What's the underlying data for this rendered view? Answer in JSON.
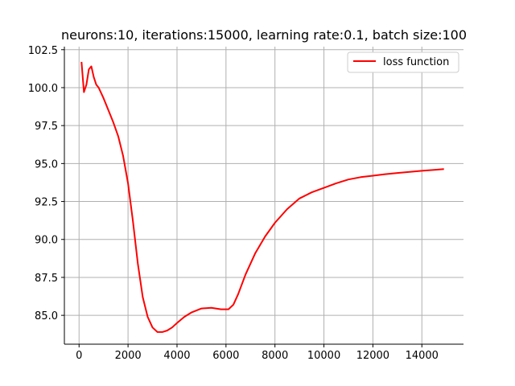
{
  "chart_data": {
    "type": "line",
    "title": "neurons:10, iterations:15000, learning rate:0.1, batch size:100",
    "xlabel": "",
    "ylabel": "",
    "xlim": [
      -600,
      15700
    ],
    "ylim": [
      83.1,
      102.7
    ],
    "grid": true,
    "legend_position": "top-right",
    "x_ticks": [
      0,
      2000,
      4000,
      6000,
      8000,
      10000,
      12000,
      14000
    ],
    "x_tick_labels": [
      "0",
      "2000",
      "4000",
      "6000",
      "8000",
      "10000",
      "12000",
      "14000"
    ],
    "y_ticks": [
      85.0,
      87.5,
      90.0,
      92.5,
      95.0,
      97.5,
      100.0,
      102.5
    ],
    "y_tick_labels": [
      "85.0",
      "87.5",
      "90.0",
      "92.5",
      "95.0",
      "97.5",
      "100.0",
      "102.5"
    ],
    "series": [
      {
        "name": "loss function",
        "color": "#ff0000",
        "x": [
          100,
          200,
          300,
          400,
          500,
          600,
          700,
          800,
          1000,
          1200,
          1400,
          1600,
          1800,
          2000,
          2200,
          2400,
          2600,
          2800,
          3000,
          3200,
          3400,
          3600,
          3800,
          4000,
          4300,
          4600,
          5000,
          5400,
          5800,
          6100,
          6300,
          6500,
          6800,
          7200,
          7600,
          8000,
          8500,
          9000,
          9500,
          10000,
          10500,
          11000,
          11500,
          12000,
          12500,
          13000,
          13500,
          14000,
          14500,
          14900
        ],
        "y": [
          101.7,
          99.7,
          100.2,
          101.2,
          101.4,
          100.7,
          100.2,
          100.0,
          99.3,
          98.5,
          97.7,
          96.8,
          95.5,
          93.7,
          91.2,
          88.4,
          86.2,
          84.9,
          84.2,
          83.9,
          83.9,
          84.0,
          84.2,
          84.5,
          84.9,
          85.2,
          85.45,
          85.5,
          85.4,
          85.4,
          85.7,
          86.4,
          87.7,
          89.1,
          90.2,
          91.1,
          92.0,
          92.7,
          93.1,
          93.4,
          93.7,
          93.95,
          94.1,
          94.2,
          94.3,
          94.38,
          94.45,
          94.52,
          94.58,
          94.63
        ]
      }
    ]
  }
}
